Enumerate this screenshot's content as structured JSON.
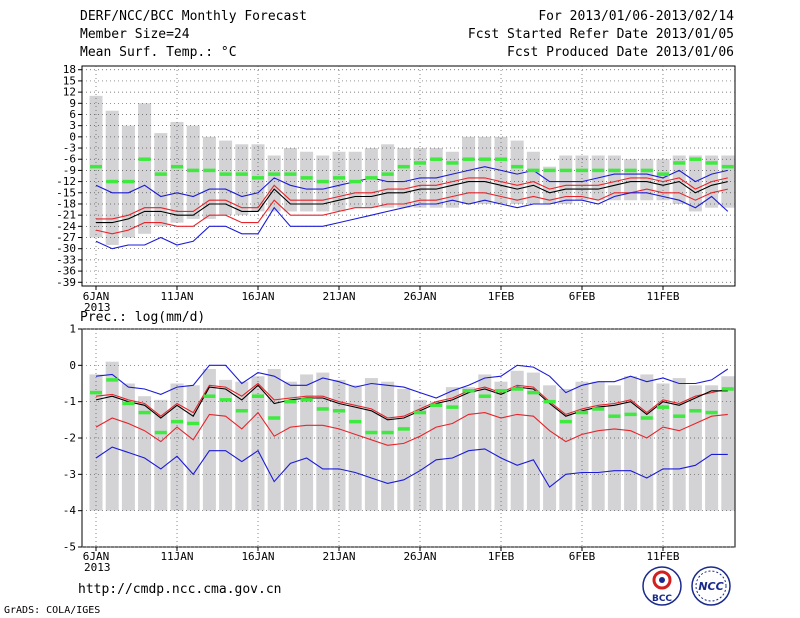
{
  "header": {
    "title": "DERF/NCC/BCC Monthly Forecast",
    "member_size": "Member Size=24",
    "variable": "Mean Surf. Temp.: °C",
    "period": "For 2013/01/06-2013/02/14",
    "started": "Fcst Started Refer Date 2013/01/05",
    "produced": "Fcst Produced Date 2013/01/06"
  },
  "footer": {
    "url": "http://cmdp.ncc.cma.gov.cn",
    "grads": "GrADS: COLA/IGES",
    "logo_left": "BCC",
    "logo_right": "NCC"
  },
  "colors": {
    "bar": "#d3d3d6",
    "mean": "#000000",
    "inner": "#e8242a",
    "outer": "#1c1cd8",
    "clim": "#3dea3d"
  },
  "chart_data": [
    {
      "type": "bar",
      "title": "Mean Surf. Temp.: °C",
      "days": 40,
      "x_tick_labels": [
        "6JAN",
        "11JAN",
        "16JAN",
        "21JAN",
        "26JAN",
        "1FEB",
        "6FEB",
        "11FEB"
      ],
      "x_tick_sublabel": "2013",
      "ylim": [
        -40,
        19
      ],
      "yticks": [
        18,
        15,
        12,
        9,
        6,
        3,
        0,
        -3,
        -6,
        -9,
        -12,
        -15,
        -18,
        -21,
        -24,
        -27,
        -30,
        -33,
        -36,
        -39
      ],
      "bar_top": [
        11,
        7,
        3,
        9,
        1,
        4,
        3,
        0,
        -1,
        -2,
        -2,
        -5,
        -3,
        -4,
        -5,
        -4,
        -4,
        -3,
        -2,
        -3,
        -3,
        -3,
        -4,
        0,
        0,
        0,
        -1,
        -4,
        -8,
        -5,
        -5,
        -5,
        -5,
        -6,
        -6,
        -6,
        -5,
        -5,
        -5,
        -5
      ],
      "bar_bottom": [
        -27,
        -29,
        -27,
        -26,
        -24,
        -23,
        -22,
        -22,
        -21,
        -21,
        -20,
        -20,
        -20,
        -20,
        -20,
        -20,
        -19,
        -19,
        -19,
        -19,
        -19,
        -19,
        -19,
        -18,
        -18,
        -18,
        -18,
        -18,
        -18,
        -18,
        -17,
        -17,
        -17,
        -17,
        -17,
        -17,
        -18,
        -20,
        -19,
        -19
      ],
      "series": [
        {
          "name": "max",
          "color_key": "outer",
          "values": [
            -13,
            -15,
            -15,
            -13,
            -16,
            -15,
            -16,
            -14,
            -14,
            -16,
            -15,
            -11,
            -13,
            -14,
            -14,
            -13,
            -12,
            -11,
            -12,
            -12,
            -11,
            -11,
            -10,
            -9,
            -8,
            -9,
            -10,
            -9,
            -12,
            -12,
            -12,
            -11,
            -10,
            -10,
            -10,
            -11,
            -9,
            -12,
            -10,
            -9
          ]
        },
        {
          "name": "upper",
          "color_key": "inner",
          "values": [
            -22,
            -22,
            -21,
            -19,
            -19,
            -20,
            -20,
            -17,
            -17,
            -19,
            -19,
            -13,
            -17,
            -17,
            -17,
            -16,
            -15,
            -15,
            -14,
            -14,
            -13,
            -13,
            -12,
            -11,
            -11,
            -12,
            -13,
            -12,
            -14,
            -13,
            -13,
            -13,
            -12,
            -11,
            -11,
            -12,
            -11,
            -14,
            -12,
            -11
          ]
        },
        {
          "name": "mean",
          "color_key": "mean",
          "values": [
            -23,
            -23,
            -22,
            -20,
            -20,
            -21,
            -21,
            -18,
            -18,
            -20,
            -20,
            -14,
            -18,
            -18,
            -18,
            -17,
            -16,
            -16,
            -15,
            -15,
            -14,
            -14,
            -13,
            -12,
            -12,
            -13,
            -14,
            -13,
            -15,
            -14,
            -14,
            -14,
            -13,
            -12,
            -12,
            -13,
            -12,
            -15,
            -13,
            -12
          ]
        },
        {
          "name": "lower",
          "color_key": "inner",
          "values": [
            -25,
            -26,
            -25,
            -23,
            -23,
            -24,
            -24,
            -21,
            -21,
            -23,
            -23,
            -17,
            -21,
            -21,
            -21,
            -20,
            -19,
            -19,
            -18,
            -18,
            -17,
            -17,
            -16,
            -15,
            -15,
            -16,
            -17,
            -16,
            -17,
            -16,
            -16,
            -17,
            -15,
            -15,
            -14,
            -15,
            -15,
            -17,
            -15,
            -14
          ]
        },
        {
          "name": "min",
          "color_key": "outer",
          "values": [
            -28,
            -30,
            -29,
            -29,
            -27,
            -29,
            -28,
            -24,
            -24,
            -26,
            -26,
            -19,
            -24,
            -24,
            -24,
            -23,
            -22,
            -21,
            -20,
            -19,
            -18,
            -18,
            -17,
            -18,
            -17,
            -18,
            -19,
            -18,
            -18,
            -17,
            -17,
            -18,
            -16,
            -15,
            -15,
            -16,
            -17,
            -19,
            -16,
            -20
          ]
        },
        {
          "name": "climatology",
          "color_key": "clim",
          "values": [
            -8,
            -12,
            -12,
            -6,
            -10,
            -8,
            -9,
            -9,
            -10,
            -10,
            -11,
            -10,
            -10,
            -11,
            -12,
            -11,
            -12,
            -11,
            -10,
            -8,
            -7,
            -6,
            -7,
            -6,
            -6,
            -6,
            -8,
            -9,
            -9,
            -9,
            -9,
            -9,
            -9,
            -9,
            -9,
            -10,
            -7,
            -6,
            -7,
            -8
          ]
        }
      ]
    },
    {
      "type": "bar",
      "title": "Prec.: log(mm/d)",
      "days": 40,
      "x_tick_labels": [
        "6JAN",
        "11JAN",
        "16JAN",
        "21JAN",
        "26JAN",
        "1FEB",
        "6FEB",
        "11FEB"
      ],
      "x_tick_sublabel": "2013",
      "ylim": [
        -5,
        1
      ],
      "yticks": [
        1,
        0,
        -1,
        -2,
        -3,
        -4,
        -5
      ],
      "bar_top": [
        -0.25,
        0.1,
        -0.5,
        -0.85,
        -0.95,
        -0.5,
        -0.55,
        -0.1,
        -0.4,
        -0.45,
        -0.3,
        -0.1,
        -0.45,
        -0.25,
        -0.2,
        -0.4,
        -0.55,
        -0.35,
        -0.45,
        -0.65,
        -0.95,
        -1.0,
        -0.6,
        -0.6,
        -0.25,
        -0.45,
        -0.15,
        -0.2,
        -0.55,
        -0.65,
        -0.45,
        -0.45,
        -0.55,
        -0.3,
        -0.25,
        -0.5,
        -0.35,
        -0.55,
        -0.55,
        -0.3
      ],
      "bar_bottom": [
        -4,
        -4,
        -4,
        -4,
        -4,
        -4,
        -4,
        -4,
        -4,
        -4,
        -4,
        -4,
        -4,
        -4,
        -4,
        -4,
        -4,
        -4,
        -4,
        -4,
        -4,
        -4,
        -4,
        -4,
        -4,
        -4,
        -4,
        -4,
        -4,
        -4,
        -4,
        -4,
        -4,
        -4,
        -4,
        -4,
        -4,
        -4,
        -4,
        -4
      ],
      "series": [
        {
          "name": "max",
          "color_key": "outer",
          "values": [
            -0.3,
            -0.25,
            -0.6,
            -0.65,
            -0.8,
            -0.6,
            -0.55,
            0.0,
            0.0,
            -0.5,
            -0.2,
            -0.3,
            -0.55,
            -0.55,
            -0.35,
            -0.45,
            -0.6,
            -0.5,
            -0.55,
            -0.6,
            -0.75,
            -0.9,
            -0.7,
            -0.55,
            -0.35,
            -0.3,
            0.0,
            -0.05,
            -0.3,
            -0.75,
            -0.55,
            -0.45,
            -0.45,
            -0.3,
            -0.45,
            -0.35,
            -0.5,
            -0.5,
            -0.4,
            -0.1
          ]
        },
        {
          "name": "upper",
          "color_key": "inner",
          "values": [
            -0.85,
            -0.8,
            -0.95,
            -1.05,
            -1.4,
            -1.05,
            -1.3,
            -0.55,
            -0.6,
            -0.85,
            -0.5,
            -0.95,
            -0.9,
            -0.85,
            -0.85,
            -1.0,
            -1.1,
            -1.2,
            -1.45,
            -1.4,
            -1.2,
            -1.0,
            -0.9,
            -0.7,
            -0.6,
            -0.75,
            -0.55,
            -0.6,
            -1.0,
            -1.35,
            -1.2,
            -1.1,
            -1.05,
            -0.95,
            -1.3,
            -0.95,
            -1.05,
            -0.85,
            -0.75,
            -0.65
          ]
        },
        {
          "name": "mean",
          "color_key": "mean",
          "values": [
            -0.95,
            -0.85,
            -1.0,
            -1.1,
            -1.45,
            -1.1,
            -1.4,
            -0.6,
            -0.65,
            -0.95,
            -0.55,
            -1.05,
            -0.95,
            -0.9,
            -0.9,
            -1.05,
            -1.15,
            -1.25,
            -1.5,
            -1.45,
            -1.25,
            -1.05,
            -0.95,
            -0.75,
            -0.65,
            -0.8,
            -0.6,
            -0.65,
            -1.05,
            -1.4,
            -1.25,
            -1.15,
            -1.1,
            -1.0,
            -1.35,
            -1.0,
            -1.1,
            -0.9,
            -0.7,
            -0.7
          ]
        },
        {
          "name": "lower",
          "color_key": "inner",
          "values": [
            -1.7,
            -1.45,
            -1.6,
            -1.8,
            -2.1,
            -1.7,
            -2.05,
            -1.35,
            -1.4,
            -1.75,
            -1.3,
            -1.95,
            -1.7,
            -1.65,
            -1.65,
            -1.75,
            -1.9,
            -2.05,
            -2.2,
            -2.15,
            -1.95,
            -1.7,
            -1.6,
            -1.35,
            -1.3,
            -1.45,
            -1.35,
            -1.4,
            -1.8,
            -2.1,
            -1.9,
            -1.8,
            -1.75,
            -1.8,
            -2.0,
            -1.7,
            -1.8,
            -1.6,
            -1.4,
            -1.35
          ]
        },
        {
          "name": "min",
          "color_key": "outer",
          "values": [
            -2.55,
            -2.25,
            -2.4,
            -2.55,
            -2.85,
            -2.5,
            -3.0,
            -2.35,
            -2.35,
            -2.65,
            -2.35,
            -3.2,
            -2.7,
            -2.55,
            -2.85,
            -2.85,
            -2.95,
            -3.1,
            -3.25,
            -3.15,
            -2.9,
            -2.6,
            -2.55,
            -2.35,
            -2.3,
            -2.55,
            -2.75,
            -2.6,
            -3.35,
            -3.0,
            -2.95,
            -2.95,
            -2.9,
            -2.9,
            -3.1,
            -2.85,
            -2.85,
            -2.75,
            -2.45,
            -2.45
          ]
        },
        {
          "name": "climatology",
          "color_key": "clim",
          "values": [
            -0.75,
            -0.4,
            -1.05,
            -1.3,
            -1.85,
            -1.55,
            -1.6,
            -0.85,
            -0.95,
            -1.25,
            -0.85,
            -1.45,
            -1.0,
            -0.95,
            -1.2,
            -1.25,
            -1.55,
            -1.85,
            -1.85,
            -1.75,
            -1.3,
            -1.1,
            -1.15,
            -0.7,
            -0.85,
            -0.7,
            -0.65,
            -0.75,
            -1.0,
            -1.55,
            -1.3,
            -1.2,
            -1.4,
            -1.35,
            -1.45,
            -1.15,
            -1.4,
            -1.25,
            -1.3,
            -0.65
          ]
        }
      ]
    }
  ]
}
